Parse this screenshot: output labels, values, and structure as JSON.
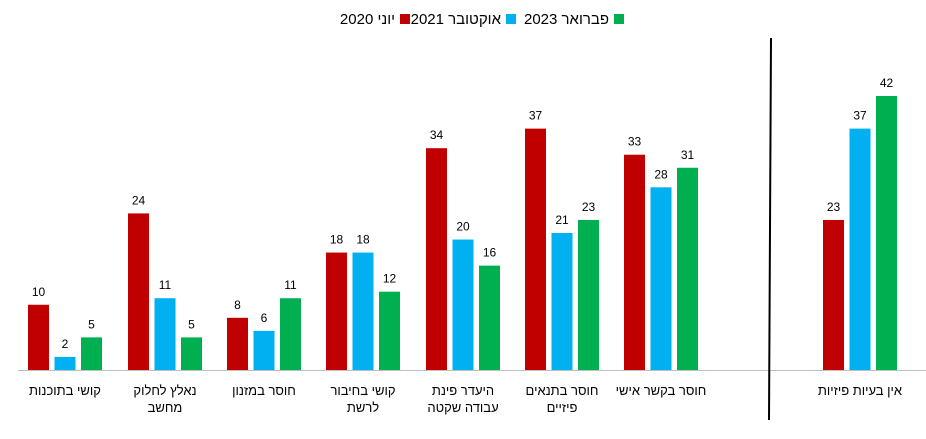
{
  "chart_data": {
    "type": "bar",
    "legend_position": "top",
    "grid": false,
    "ylim": [
      0,
      47
    ],
    "categories": [
      [
        "קושי בתוכנות"
      ],
      [
        "נאלץ לחלוק",
        "מחשב"
      ],
      [
        "חוסר במזנון"
      ],
      [
        "קושי בחיבור",
        "לרשת"
      ],
      [
        "היעדר פינת",
        "עבודה שקטה"
      ],
      [
        "חוסר בתנאים",
        "פיזיים"
      ],
      [
        "חוסר בקשר אישי"
      ],
      [
        "אין בעיות פיזיות"
      ]
    ],
    "series": [
      {
        "name": "יוני 2020",
        "color": "#C00000",
        "values": [
          10,
          24,
          8,
          18,
          34,
          37,
          33,
          23
        ]
      },
      {
        "name": "אוקטובר 2021",
        "color": "#00B0F0",
        "values": [
          2,
          11,
          6,
          18,
          20,
          21,
          28,
          37
        ]
      },
      {
        "name": "פברואר 2023",
        "color": "#00B050",
        "values": [
          5,
          5,
          11,
          12,
          16,
          23,
          31,
          42
        ]
      }
    ]
  }
}
